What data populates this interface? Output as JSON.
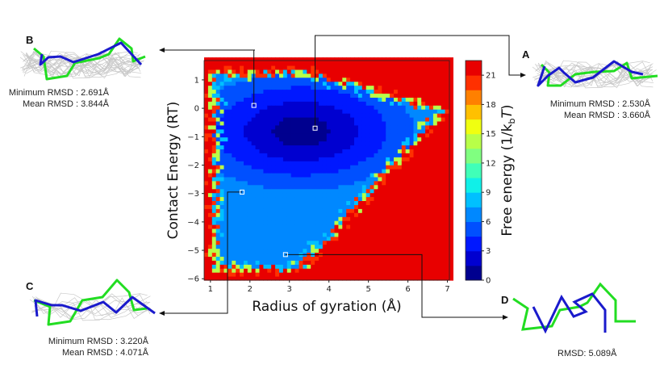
{
  "chart_data": {
    "type": "heatmap",
    "xlabel": "Radius of gyration (Å)",
    "ylabel": "Contact Energy (RT)",
    "colorbar_label": "Free energy (1/k_bT)",
    "xlim": [
      0.84,
      7.05
    ],
    "ylim": [
      -6.05,
      1.68
    ],
    "xticks": [
      "1",
      "2",
      "3",
      "4",
      "5",
      "6",
      "7"
    ],
    "yticks": [
      "1",
      "0",
      "−1",
      "−2",
      "−3",
      "−4",
      "−5",
      "−6"
    ],
    "colorbar_ticks": [
      "0",
      "3",
      "6",
      "9",
      "12",
      "15",
      "18",
      "21"
    ],
    "colorbar_range": [
      0,
      22.5
    ],
    "colorbar_step": 1.5,
    "colormap": [
      "#00008f",
      "#0000d0",
      "#0018ff",
      "#0050ff",
      "#0088ff",
      "#00c0ff",
      "#10f0e8",
      "#40ffb8",
      "#80ff80",
      "#b8ff48",
      "#f0ff10",
      "#ffc000",
      "#ff8000",
      "#ff3000",
      "#e80000",
      "#a00000"
    ],
    "marked_points": [
      {
        "label": "B",
        "x": 2.1,
        "y": 0.1
      },
      {
        "label": "A",
        "x": 3.65,
        "y": -0.7
      },
      {
        "label": "C",
        "x": 1.8,
        "y": -2.95
      },
      {
        "label": "D",
        "x": 2.9,
        "y": -5.15
      }
    ]
  },
  "panels": {
    "A": {
      "label": "A",
      "line1": "Minimum RMSD : 2.530Å",
      "line2": "Mean RMSD : 3.660Å"
    },
    "B": {
      "label": "B",
      "line1": "Minimum RMSD : 2.691Å",
      "line2": "Mean RMSD : 3.844Å"
    },
    "C": {
      "label": "C",
      "line1": "Minimum RMSD : 3.220Å",
      "line2": "Mean RMSD : 4.071Å"
    },
    "D": {
      "label": "D",
      "line1": "RMSD: 5.089Å"
    }
  },
  "colors": {
    "native": "#22dd22",
    "predicted": "#1a1acc",
    "ensemble": "#c8c8c8"
  }
}
